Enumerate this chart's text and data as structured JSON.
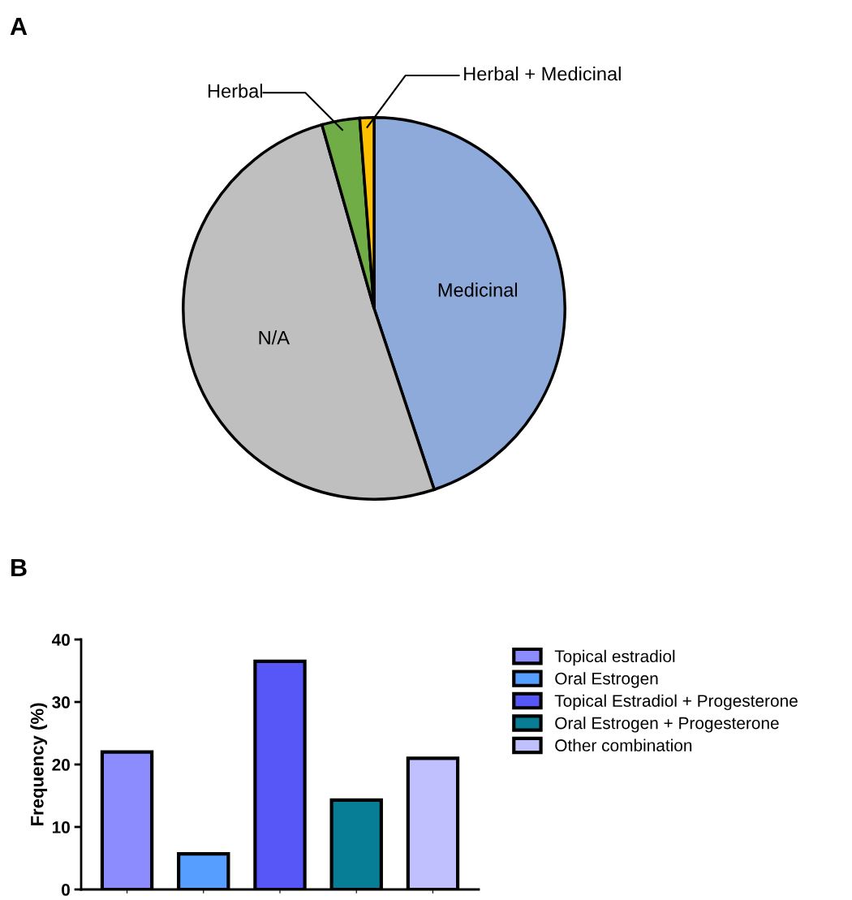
{
  "chart_data": [
    {
      "type": "pie",
      "categories": [
        "Medicinal",
        "N/A",
        "Herbal",
        "Herbal + Medicinal"
      ],
      "values": [
        44.9,
        50.7,
        3.2,
        1.2
      ],
      "colors": [
        "#8eaadb",
        "#bfbfbf",
        "#70ad47",
        "#ffc000"
      ],
      "annotations": [
        "A"
      ]
    },
    {
      "type": "bar",
      "ylabel": "Frequency (%)",
      "categories": [
        null,
        null,
        null,
        null,
        null
      ],
      "series": [
        {
          "name": "Topical estradiol",
          "color": "#8c8cff",
          "values": [
            22.0,
            null,
            null,
            null,
            null
          ]
        },
        {
          "name": "Oral Estrogen",
          "color": "#569eff",
          "values": [
            null,
            5.7,
            null,
            null,
            null
          ]
        },
        {
          "name": "Topical Estradiol + Progesterone",
          "color": "#5757f8",
          "values": [
            null,
            null,
            36.5,
            null,
            null
          ]
        },
        {
          "name": "Oral Estrogen + Progesterone",
          "color": "#087e96",
          "values": [
            null,
            null,
            null,
            14.3,
            null
          ]
        },
        {
          "name": "Other combination",
          "color": "#c0c0ff",
          "values": [
            null,
            null,
            null,
            null,
            21.0
          ]
        }
      ],
      "ylim": [
        0,
        40
      ],
      "yticks": [
        0,
        10,
        20,
        30,
        40
      ],
      "legend": "right",
      "grid": false,
      "annotations": [
        "B"
      ]
    }
  ]
}
